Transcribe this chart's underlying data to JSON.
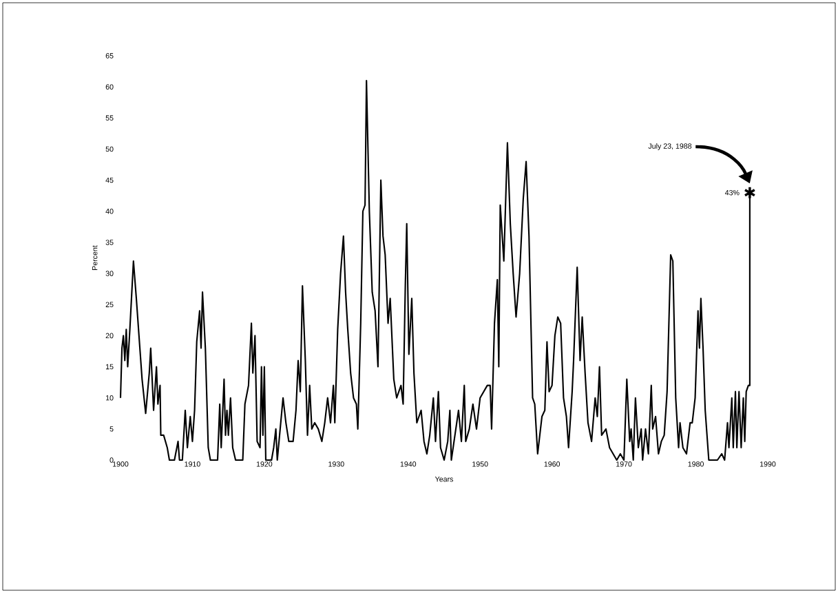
{
  "chart_data": {
    "type": "line",
    "xlabel": "Years",
    "ylabel": "Percent",
    "xlim": [
      1900,
      1990
    ],
    "ylim": [
      0,
      65
    ],
    "xticks": [
      1900,
      1910,
      1920,
      1930,
      1940,
      1950,
      1960,
      1970,
      1980,
      1990
    ],
    "yticks": [
      0,
      5,
      10,
      15,
      20,
      25,
      30,
      35,
      40,
      45,
      50,
      55,
      60,
      65
    ],
    "series": [
      {
        "color": "#000000",
        "x": [
          1900.0,
          1900.2,
          1900.4,
          1900.6,
          1900.8,
          1901.0,
          1901.3,
          1901.8,
          1902.2,
          1903.0,
          1903.5,
          1904.0,
          1904.2,
          1904.6,
          1905.0,
          1905.2,
          1905.5,
          1905.6,
          1906.0,
          1906.5,
          1906.8,
          1907.5,
          1908.0,
          1908.2,
          1908.6,
          1909.0,
          1909.3,
          1909.7,
          1910.0,
          1910.3,
          1910.6,
          1911.0,
          1911.2,
          1911.4,
          1911.8,
          1912.2,
          1912.5,
          1913.5,
          1913.8,
          1914.0,
          1914.4,
          1914.6,
          1914.8,
          1915.0,
          1915.3,
          1915.6,
          1916.0,
          1917.0,
          1917.3,
          1917.8,
          1918.2,
          1918.4,
          1918.7,
          1919.0,
          1919.4,
          1919.6,
          1919.8,
          1920.0,
          1920.2,
          1921.0,
          1921.3,
          1921.6,
          1921.8,
          1922.2,
          1922.6,
          1923.0,
          1923.4,
          1924.0,
          1924.4,
          1924.7,
          1925.0,
          1925.3,
          1925.7,
          1926.0,
          1926.3,
          1926.6,
          1927.0,
          1927.5,
          1928.0,
          1928.4,
          1928.8,
          1929.2,
          1929.6,
          1929.8,
          1930.2,
          1930.6,
          1931.0,
          1931.3,
          1931.6,
          1932.0,
          1932.4,
          1932.8,
          1933.0,
          1933.4,
          1933.7,
          1934.0,
          1934.2,
          1934.6,
          1935.0,
          1935.4,
          1935.8,
          1936.2,
          1936.5,
          1936.8,
          1937.2,
          1937.5,
          1938.0,
          1938.4,
          1939.0,
          1939.3,
          1939.6,
          1939.8,
          1940.1,
          1940.5,
          1940.8,
          1941.2,
          1941.8,
          1942.2,
          1942.6,
          1943.0,
          1943.5,
          1943.8,
          1944.2,
          1944.5,
          1945.0,
          1945.5,
          1945.8,
          1946.0,
          1946.5,
          1947.0,
          1947.4,
          1947.8,
          1948.0,
          1948.5,
          1949.0,
          1949.5,
          1950.0,
          1950.5,
          1951.0,
          1951.4,
          1951.6,
          1952.0,
          1952.4,
          1952.6,
          1952.8,
          1953.3,
          1953.8,
          1954.2,
          1954.6,
          1955.0,
          1955.5,
          1956.0,
          1956.4,
          1956.8,
          1957.3,
          1957.6,
          1958.0,
          1958.3,
          1958.6,
          1959.0,
          1959.3,
          1959.6,
          1960.0,
          1960.4,
          1960.8,
          1961.2,
          1961.6,
          1962.0,
          1962.3,
          1962.8,
          1963.0,
          1963.5,
          1963.9,
          1964.2,
          1964.6,
          1965.0,
          1965.5,
          1966.0,
          1966.3,
          1966.6,
          1966.9,
          1967.5,
          1968.0,
          1968.5,
          1969.0,
          1969.5,
          1970.0,
          1970.4,
          1970.8,
          1971.0,
          1971.3,
          1971.6,
          1972.0,
          1972.4,
          1972.6,
          1973.0,
          1973.4,
          1973.8,
          1974.0,
          1974.4,
          1974.8,
          1975.2,
          1975.6,
          1976.0,
          1976.5,
          1976.8,
          1977.2,
          1977.6,
          1977.8,
          1978.2,
          1978.7,
          1979.2,
          1979.5,
          1979.9,
          1980.3,
          1980.5,
          1980.7,
          1981.0,
          1981.3,
          1981.8,
          1983.0,
          1983.6,
          1984.0,
          1984.4,
          1984.6,
          1985.0,
          1985.2,
          1985.5,
          1985.7,
          1986.0,
          1986.3,
          1986.6,
          1986.8,
          1987.0,
          1987.3,
          1987.5,
          1987.5
        ],
        "values": [
          10,
          18,
          20,
          16,
          21,
          15,
          21,
          32,
          26,
          13,
          7.5,
          14,
          18,
          8,
          15,
          9,
          12,
          4,
          4,
          2,
          0,
          0,
          3,
          0,
          0,
          8,
          2,
          7,
          3,
          8,
          19,
          24,
          18,
          27,
          18,
          2,
          0,
          0,
          9,
          2,
          13,
          4,
          8,
          4,
          10,
          2,
          0,
          0,
          9,
          12,
          22,
          14,
          20,
          3,
          2,
          15,
          4,
          15,
          0,
          0,
          2,
          5,
          0,
          5,
          10,
          6,
          3,
          3,
          8,
          16,
          11,
          28,
          16,
          4,
          12,
          5,
          6,
          5,
          3,
          6,
          10,
          6,
          12,
          6,
          21,
          30,
          36,
          27,
          21,
          14,
          10,
          9,
          5,
          22,
          40,
          41,
          61,
          40,
          27,
          24,
          15,
          45,
          36,
          33,
          22,
          26,
          13,
          10,
          12,
          9,
          28,
          38,
          17,
          26,
          14,
          6,
          8,
          3,
          1,
          4,
          10,
          3,
          11,
          2,
          0,
          3,
          8,
          0,
          4,
          8,
          3,
          12,
          3,
          5,
          9,
          5,
          10,
          11,
          12,
          12,
          5,
          22,
          29,
          15,
          41,
          32,
          51,
          38,
          30,
          23,
          30,
          42,
          48,
          36,
          10,
          9,
          1,
          4,
          7,
          8,
          19,
          11,
          12,
          20,
          23,
          22,
          10,
          7,
          2,
          11,
          16,
          31,
          16,
          23,
          14,
          6,
          3,
          10,
          7,
          15,
          4,
          5,
          2,
          1,
          0,
          1,
          0,
          13,
          3,
          5,
          0,
          10,
          2,
          5,
          0,
          5,
          1,
          12,
          5,
          7,
          1,
          3,
          4,
          11,
          33,
          32,
          10,
          2,
          6,
          2,
          1,
          6,
          6,
          10,
          24,
          18,
          26,
          18,
          8,
          0,
          0,
          1,
          0,
          6,
          2,
          10,
          2,
          11,
          2,
          11,
          2,
          10,
          3,
          11,
          12,
          12,
          43
        ]
      },
      {
        "type": "scatter",
        "color": "#000000",
        "marker": "cross",
        "x": [
          1987.5
        ],
        "values": [
          43
        ]
      }
    ],
    "annotations": [
      "July 23, 1988",
      {
        "text": "43%",
        "x": 1987.5,
        "y": 43
      }
    ]
  }
}
